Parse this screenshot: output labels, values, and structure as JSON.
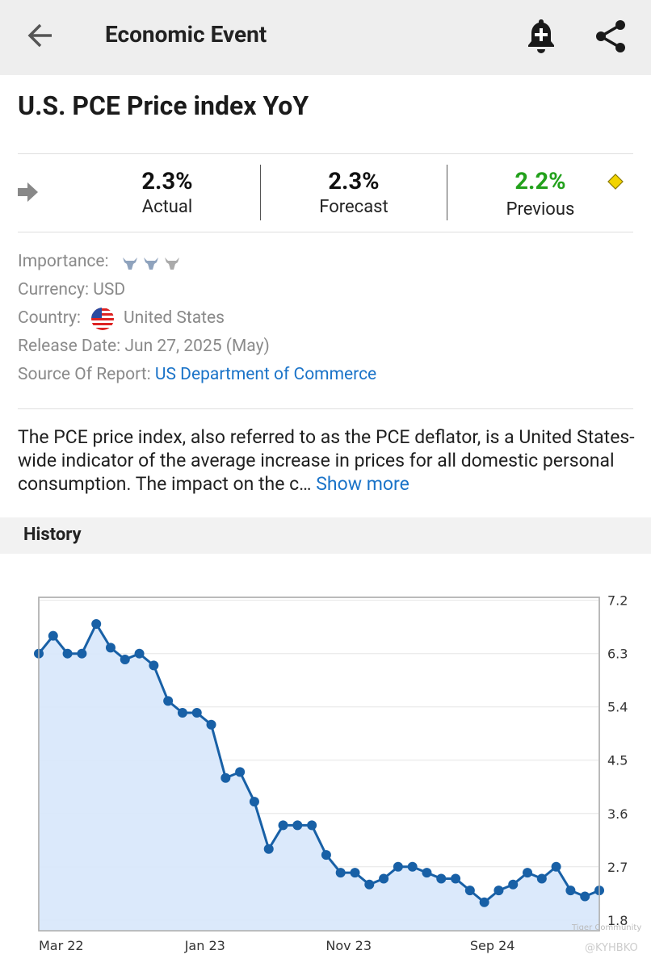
{
  "header": {
    "title": "Economic Event"
  },
  "event": {
    "title": "U.S. PCE Price index YoY"
  },
  "stats": [
    {
      "value": "2.3%",
      "label": "Actual"
    },
    {
      "value": "2.3%",
      "label": "Forecast"
    },
    {
      "value": "2.2%",
      "label": "Previous"
    }
  ],
  "details": [
    {
      "label": "Importance:"
    },
    {
      "label": "Currency:",
      "value": "USD"
    },
    {
      "label": "Country:",
      "value": "United States"
    },
    {
      "label": "Release Date:",
      "value": "Jun 27, 2025 (May)"
    },
    {
      "label": "Source Of Report:",
      "value": "US Department of Commerce"
    }
  ],
  "description": {
    "text": "The PCE price index, also referred to as the PCE deflator, is a United States-wide indicator of the average increase in prices for all domestic personal consumption. The impact on the c…",
    "more": "Show more"
  },
  "section": {
    "title": "History"
  },
  "chart_data": {
    "type": "line",
    "color": "#1860a6",
    "fill_color": "#d7e7fb",
    "categories": [
      null,
      "Mar 22",
      null,
      null,
      null,
      null,
      null,
      null,
      null,
      null,
      null,
      "Jan 23",
      null,
      null,
      null,
      null,
      null,
      null,
      null,
      null,
      null,
      "Nov 23",
      null,
      null,
      null,
      null,
      null,
      null,
      null,
      null,
      null,
      "Sep 24",
      null,
      null,
      null,
      null,
      null,
      null,
      null,
      null
    ],
    "values": [
      6.3,
      6.6,
      6.3,
      6.3,
      6.8,
      6.4,
      6.2,
      6.3,
      6.1,
      5.5,
      5.3,
      5.3,
      5.1,
      4.2,
      4.3,
      3.8,
      3.0,
      3.4,
      3.4,
      3.4,
      2.9,
      2.6,
      2.6,
      2.4,
      2.5,
      2.7,
      2.7,
      2.6,
      2.5,
      2.5,
      2.3,
      2.1,
      2.3,
      2.4,
      2.6,
      2.5,
      2.7,
      2.3,
      2.2,
      2.3
    ],
    "ylim": [
      1.62,
      7.25
    ],
    "yticks": [
      1.8,
      2.7,
      3.6,
      4.5,
      5.4,
      6.3,
      7.2
    ],
    "grid": true
  },
  "watermark": [
    "Tiger Community",
    "@KYHBKO"
  ]
}
